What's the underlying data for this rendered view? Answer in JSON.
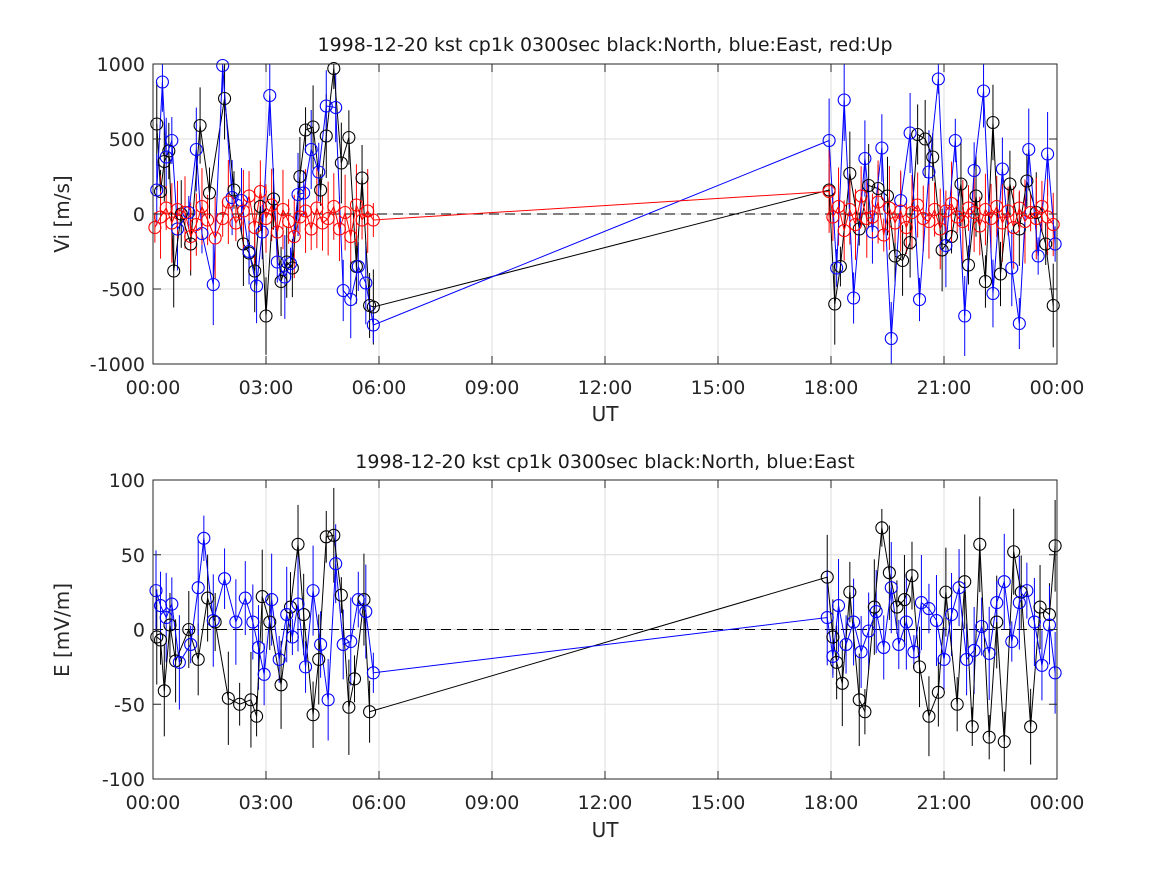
{
  "chart_data": [
    {
      "type": "line",
      "title": "1998-12-20 kst cp1k 0300sec black:North, blue:East, red:Up",
      "xlabel": "UT",
      "ylabel": "Vi [m/s]",
      "xlim": [
        0,
        24
      ],
      "ylim": [
        -1000,
        1000
      ],
      "x_tick_labels": [
        "00:00",
        "03:00",
        "06:00",
        "09:00",
        "12:00",
        "15:00",
        "18:00",
        "21:00",
        "00:00"
      ],
      "y_ticks": [
        -1000,
        -500,
        0,
        500,
        1000
      ],
      "y_tick_labels": [
        "-1000",
        "-500",
        "0",
        "500",
        "1000"
      ],
      "grid": true,
      "zero_line": true,
      "series": [
        {
          "name": "North",
          "color": "#000000",
          "x": [
            0.1,
            0.2,
            0.3,
            0.42,
            0.55,
            0.75,
            1.0,
            1.25,
            1.5,
            1.9,
            2.15,
            2.4,
            2.55,
            2.7,
            2.85,
            3.0,
            3.2,
            3.4,
            3.55,
            3.7,
            3.9,
            4.05,
            4.25,
            4.45,
            4.6,
            4.8,
            5.0,
            5.2,
            5.4,
            5.55,
            5.75,
            5.85,
            17.95,
            18.1,
            18.25,
            18.5,
            18.75,
            19.0,
            19.25,
            19.5,
            19.7,
            19.9,
            20.1,
            20.3,
            20.5,
            20.7,
            20.95,
            21.2,
            21.45,
            21.65,
            21.85,
            22.1,
            22.3,
            22.5,
            22.75,
            23.0,
            23.2,
            23.45,
            23.7,
            23.9
          ],
          "y": [
            600,
            150,
            350,
            420,
            -380,
            0,
            -200,
            590,
            140,
            770,
            160,
            -200,
            -260,
            -380,
            50,
            -680,
            100,
            -450,
            -320,
            -360,
            250,
            560,
            580,
            160,
            520,
            970,
            340,
            510,
            -350,
            240,
            -610,
            -620,
            160,
            -600,
            -350,
            270,
            -100,
            190,
            170,
            120,
            -280,
            -310,
            -190,
            530,
            500,
            380,
            -240,
            -150,
            200,
            -340,
            120,
            -450,
            610,
            -400,
            200,
            -100,
            220,
            10,
            -200,
            -610
          ]
        },
        {
          "name": "East",
          "color": "#0000ff",
          "x": [
            0.1,
            0.25,
            0.35,
            0.5,
            0.65,
            0.95,
            1.15,
            1.3,
            1.6,
            1.85,
            2.1,
            2.35,
            2.55,
            2.75,
            2.9,
            3.1,
            3.3,
            3.5,
            3.65,
            3.85,
            4.0,
            4.2,
            4.4,
            4.6,
            4.85,
            5.05,
            5.25,
            5.45,
            5.65,
            5.85,
            17.95,
            18.15,
            18.35,
            18.6,
            18.9,
            19.1,
            19.35,
            19.6,
            19.85,
            20.1,
            20.35,
            20.6,
            20.85,
            21.05,
            21.3,
            21.55,
            21.8,
            22.05,
            22.3,
            22.55,
            22.8,
            23.0,
            23.25,
            23.5,
            23.75,
            23.95
          ],
          "y": [
            160,
            880,
            380,
            490,
            -100,
            10,
            430,
            -130,
            -470,
            990,
            110,
            90,
            -250,
            -480,
            -120,
            790,
            -320,
            -420,
            -330,
            130,
            140,
            430,
            280,
            720,
            710,
            -510,
            -570,
            -350,
            -460,
            -740,
            490,
            -360,
            760,
            -560,
            370,
            -120,
            440,
            -830,
            90,
            540,
            -570,
            280,
            900,
            -210,
            490,
            -680,
            290,
            820,
            -530,
            300,
            -360,
            -730,
            430,
            -280,
            400,
            -200
          ]
        },
        {
          "name": "Up",
          "color": "#ff0000",
          "x": [
            0.05,
            0.2,
            0.35,
            0.5,
            0.65,
            0.85,
            1.0,
            1.15,
            1.3,
            1.45,
            1.65,
            1.85,
            2.0,
            2.2,
            2.4,
            2.55,
            2.7,
            2.85,
            3.0,
            3.15,
            3.3,
            3.45,
            3.6,
            3.75,
            3.9,
            4.05,
            4.2,
            4.35,
            4.5,
            4.65,
            4.8,
            4.95,
            5.1,
            5.25,
            5.4,
            5.55,
            5.7,
            5.85,
            17.95,
            18.05,
            18.2,
            18.35,
            18.5,
            18.65,
            18.8,
            18.95,
            19.1,
            19.25,
            19.4,
            19.55,
            19.7,
            19.85,
            20.0,
            20.15,
            20.3,
            20.45,
            20.6,
            20.75,
            20.9,
            21.05,
            21.2,
            21.35,
            21.5,
            21.65,
            21.8,
            21.95,
            22.1,
            22.25,
            22.4,
            22.55,
            22.7,
            22.85,
            23.0,
            23.15,
            23.3,
            23.45,
            23.6,
            23.75,
            23.9
          ],
          "y": [
            -90,
            -20,
            40,
            -60,
            30,
            10,
            -150,
            -70,
            50,
            -40,
            -160,
            -30,
            80,
            -60,
            20,
            120,
            -90,
            150,
            -30,
            60,
            -120,
            30,
            -50,
            -150,
            -20,
            20,
            -100,
            40,
            -60,
            -30,
            50,
            -100,
            10,
            -150,
            60,
            -40,
            20,
            -40,
            150,
            -20,
            50,
            -110,
            30,
            -70,
            120,
            -30,
            -20,
            80,
            -140,
            40,
            -60,
            20,
            -90,
            10,
            60,
            -30,
            -50,
            30,
            -100,
            20,
            70,
            -20,
            -50,
            40,
            10,
            -80,
            30,
            -30,
            50,
            -60,
            20,
            -90,
            40,
            -50,
            10,
            -30,
            50,
            -20,
            -70
          ]
        }
      ]
    },
    {
      "type": "line",
      "title": "1998-12-20 kst cp1k 0300sec black:North, blue:East",
      "xlabel": "UT",
      "ylabel": "E [mV/m]",
      "xlim": [
        0,
        24
      ],
      "ylim": [
        -100,
        100
      ],
      "x_tick_labels": [
        "00:00",
        "03:00",
        "06:00",
        "09:00",
        "12:00",
        "15:00",
        "18:00",
        "21:00",
        "00:00"
      ],
      "y_ticks": [
        -100,
        -50,
        0,
        50,
        100
      ],
      "y_tick_labels": [
        "-100",
        "-50",
        "0",
        "50",
        "100"
      ],
      "grid": true,
      "zero_line": true,
      "series": [
        {
          "name": "North",
          "color": "#000000",
          "x": [
            0.1,
            0.2,
            0.3,
            0.45,
            0.6,
            0.95,
            1.2,
            1.45,
            1.65,
            2.0,
            2.3,
            2.6,
            2.75,
            2.9,
            3.1,
            3.4,
            3.65,
            3.85,
            4.0,
            4.25,
            4.4,
            4.6,
            4.8,
            5.0,
            5.2,
            5.35,
            5.6,
            5.75,
            17.9,
            18.05,
            18.15,
            18.3,
            18.5,
            18.75,
            18.9,
            19.15,
            19.35,
            19.55,
            19.75,
            19.95,
            20.15,
            20.35,
            20.6,
            20.85,
            21.05,
            21.35,
            21.55,
            21.75,
            21.95,
            22.2,
            22.4,
            22.6,
            22.85,
            23.05,
            23.3,
            23.55,
            23.8,
            23.95
          ],
          "y": [
            -5,
            -7,
            -41,
            3,
            -21,
            0,
            -20,
            21,
            5,
            -46,
            -50,
            -47,
            -58,
            22,
            5,
            -37,
            15,
            57,
            10,
            -57,
            -20,
            62,
            63,
            23,
            -52,
            -33,
            20,
            -55,
            35,
            -5,
            -22,
            -36,
            25,
            -47,
            -55,
            15,
            68,
            38,
            15,
            20,
            36,
            -25,
            -58,
            -42,
            25,
            -50,
            32,
            -65,
            57,
            -72,
            5,
            -75,
            52,
            25,
            -65,
            15,
            10,
            56
          ]
        },
        {
          "name": "East",
          "color": "#0000ff",
          "x": [
            0.08,
            0.2,
            0.35,
            0.5,
            0.7,
            1.0,
            1.2,
            1.35,
            1.6,
            1.9,
            2.2,
            2.45,
            2.65,
            2.8,
            2.95,
            3.15,
            3.35,
            3.55,
            3.7,
            3.85,
            4.05,
            4.25,
            4.45,
            4.65,
            4.85,
            5.05,
            5.25,
            5.45,
            5.65,
            5.85,
            17.9,
            18.05,
            18.2,
            18.4,
            18.6,
            18.8,
            19.0,
            19.2,
            19.4,
            19.6,
            19.8,
            20.0,
            20.2,
            20.4,
            20.6,
            20.8,
            21.0,
            21.2,
            21.4,
            21.6,
            21.8,
            22.0,
            22.2,
            22.4,
            22.6,
            22.8,
            23.0,
            23.2,
            23.4,
            23.6,
            23.8,
            23.95
          ],
          "y": [
            26,
            16,
            8,
            17,
            -22,
            -10,
            28,
            61,
            6,
            34,
            5,
            21,
            5,
            -12,
            -30,
            20,
            -20,
            10,
            -5,
            17,
            -25,
            26,
            -10,
            -47,
            44,
            -10,
            -8,
            20,
            12,
            -29,
            8,
            -18,
            16,
            -10,
            5,
            -15,
            -1,
            12,
            -12,
            28,
            -10,
            5,
            -15,
            18,
            14,
            6,
            -20,
            10,
            28,
            -20,
            -14,
            2,
            -16,
            18,
            32,
            -8,
            18,
            26,
            5,
            -24,
            3,
            -29
          ]
        }
      ]
    }
  ]
}
